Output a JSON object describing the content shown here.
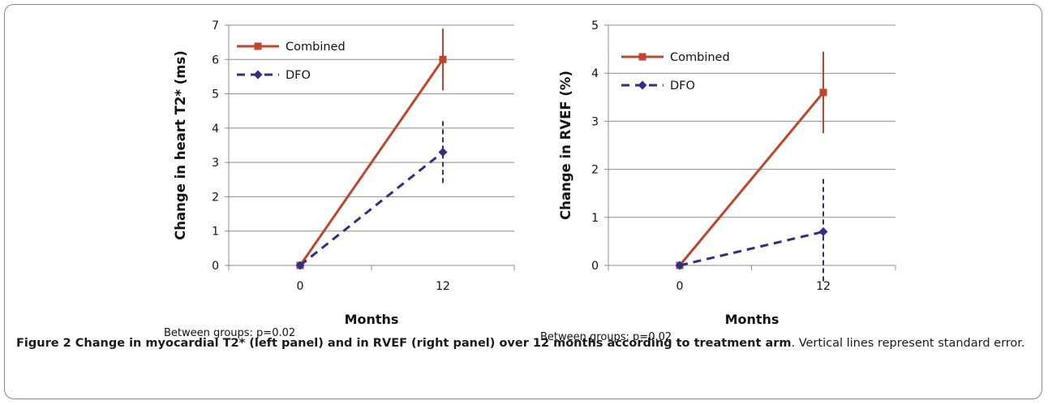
{
  "chart_data": [
    {
      "type": "line",
      "categories": [
        "0",
        "12"
      ],
      "ylabel": "Change in heart T2* (ms)",
      "xlabel": "Months",
      "ylim": [
        0,
        7
      ],
      "yticks": [
        0,
        1,
        2,
        3,
        4,
        5,
        6,
        7
      ],
      "grid": true,
      "legend": "top-left",
      "series": [
        {
          "name": "Combined",
          "values": [
            0,
            6.0
          ],
          "se": [
            0,
            0.9
          ],
          "color": "#c0452b",
          "dash": false,
          "marker": "square"
        },
        {
          "name": "DFO",
          "values": [
            0,
            3.3
          ],
          "se": [
            0,
            0.9
          ],
          "color": "#2e2e8c",
          "dash": true,
          "marker": "diamond"
        }
      ]
    },
    {
      "type": "line",
      "categories": [
        "0",
        "12"
      ],
      "ylabel": "Change in RVEF (%)",
      "xlabel": "Months",
      "ylim": [
        0,
        5
      ],
      "yticks": [
        0,
        1,
        2,
        3,
        4,
        5
      ],
      "grid": true,
      "legend": "top-left",
      "series": [
        {
          "name": "Combined",
          "values": [
            0,
            3.6
          ],
          "se": [
            0,
            0.85
          ],
          "color": "#c0452b",
          "dash": false,
          "marker": "square"
        },
        {
          "name": "DFO",
          "values": [
            0,
            0.7
          ],
          "se": [
            0,
            1.1
          ],
          "color": "#2e2e8c",
          "dash": true,
          "marker": "diamond"
        }
      ]
    }
  ],
  "notes": [
    "Between groups: p=0.02",
    "Between groups: p=0.02"
  ],
  "caption": {
    "bold": "Figure 2 Change in myocardial T2* (left panel) and in RVEF (right panel) over 12 months according to treatment arm",
    "rest": ". Vertical lines represent standard error."
  }
}
